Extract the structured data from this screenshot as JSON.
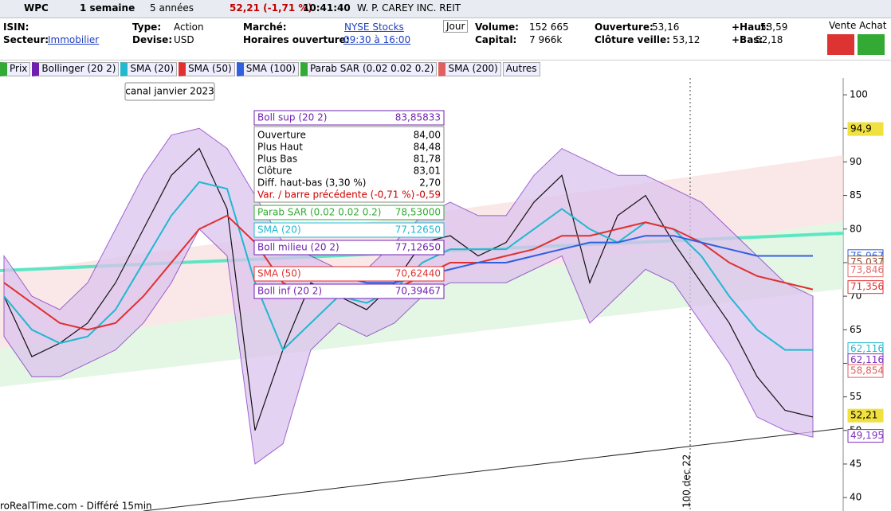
{
  "header": {
    "symbol": "WPC",
    "period": "1 semaine",
    "range": "5 années",
    "change": "52,21 (-1,71 %)",
    "time": "10:41:40",
    "name": "W. P. CAREY INC. REIT"
  },
  "info": [
    {
      "label": "ISIN:",
      "value": ""
    },
    {
      "label": "Secteur:",
      "value": "Immobilier"
    },
    {
      "label": "Type:",
      "value": "Action"
    },
    {
      "label": "Devise:",
      "value": "USD"
    },
    {
      "label": "Marché:",
      "value": "NYSE Stocks"
    },
    {
      "label": "Horaires ouverture:",
      "value": "09:30 à 16:00"
    },
    {
      "label": "Volume:",
      "value": "152 665"
    },
    {
      "label": "Capital:",
      "value": "7 966k"
    },
    {
      "label": "Ouverture:",
      "value": "53,16"
    },
    {
      "label": "Clôture veille:",
      "value": "53,12"
    },
    {
      "label": "+Haut:",
      "value": "53,59"
    },
    {
      "label": "+Bas:",
      "value": "52,18"
    }
  ],
  "jour": "Jour",
  "trade": "Vente Achat",
  "toolbar": [
    "Prix",
    "Bollinger (20 2)",
    "SMA (20)",
    "SMA (50)",
    "SMA (100)",
    "Parab SAR (0.02 0.02 0.2)",
    "SMA (200)",
    "Autres"
  ],
  "annotation": "canal janvier 2023",
  "date_marker": "100 dec 22",
  "footer": "roRealTime.com - Différé 15min",
  "tooltip": [
    {
      "label": "Boll sup (20 2)",
      "value": "83,85833"
    },
    {
      "label": "Ouverture",
      "value": "84,00"
    },
    {
      "label": "Plus Haut",
      "value": "84,48"
    },
    {
      "label": "Plus Bas",
      "value": "81,78"
    },
    {
      "label": "Clôture",
      "value": "83,01"
    },
    {
      "label": "Diff. haut-bas (3,30 %)",
      "value": "2,70"
    },
    {
      "label": "Var. / barre précédente (-0,71 %)",
      "value": "-0,59"
    },
    {
      "label": "Parab SAR (0.02 0.02 0.2)",
      "value": "78,53000"
    },
    {
      "label": "SMA (20)",
      "value": "77,12650"
    },
    {
      "label": "Boll milieu (20 2)",
      "value": "77,12650"
    },
    {
      "label": "SMA (50)",
      "value": "70,62440"
    },
    {
      "label": "Boll inf (20 2)",
      "value": "70,39467"
    }
  ],
  "chart_data": {
    "type": "line",
    "ylim": [
      38,
      102.5
    ],
    "yticks": [
      40,
      45,
      50,
      55,
      60,
      65,
      70,
      75,
      80,
      85,
      90,
      95,
      100
    ],
    "band": {
      "upper": [
        76,
        70,
        68,
        72,
        80,
        88,
        94,
        95,
        92,
        85,
        78,
        76,
        74,
        74,
        78,
        82,
        84,
        82,
        82,
        88,
        92,
        90,
        88,
        88,
        86,
        84,
        80,
        76,
        72,
        70
      ],
      "lower": [
        64,
        58,
        58,
        60,
        62,
        66,
        72,
        80,
        76,
        45,
        48,
        62,
        66,
        64,
        66,
        70,
        72,
        72,
        72,
        74,
        76,
        66,
        70,
        74,
        72,
        66,
        60,
        52,
        50,
        49
      ],
      "color": "#dcc3ee"
    },
    "series": [
      {
        "name": "Prix",
        "color": "#111111",
        "values": [
          70,
          61,
          63,
          66,
          72,
          80,
          88,
          92,
          83,
          50,
          62,
          72,
          70,
          68,
          72,
          78,
          79,
          76,
          78,
          84,
          88,
          72,
          82,
          85,
          78,
          72,
          66,
          58,
          53,
          52
        ]
      },
      {
        "name": "SMA (20)",
        "color": "#22b8d0",
        "values": [
          70,
          65,
          63,
          64,
          68,
          75,
          82,
          87,
          86,
          72,
          62,
          66,
          70,
          69,
          71,
          75,
          77,
          77,
          77,
          80,
          83,
          80,
          78,
          81,
          80,
          76,
          70,
          65,
          62,
          62
        ]
      },
      {
        "name": "SMA (50)",
        "color": "#e03030",
        "values": [
          72,
          69,
          66,
          65,
          66,
          70,
          75,
          80,
          82,
          78,
          72,
          70,
          70,
          70,
          71,
          73,
          75,
          75,
          76,
          77,
          79,
          79,
          80,
          81,
          80,
          78,
          75,
          73,
          72,
          71
        ]
      },
      {
        "name": "SMA (100)",
        "color": "#3060e0",
        "values": [
          null,
          null,
          null,
          null,
          null,
          null,
          null,
          null,
          null,
          null,
          null,
          74,
          73,
          72,
          72,
          73,
          74,
          75,
          75,
          76,
          77,
          78,
          78,
          79,
          79,
          78,
          77,
          76,
          76,
          76
        ]
      }
    ],
    "price_labels": [
      {
        "value": 94.9,
        "label": "94,9",
        "color": "#f0e040"
      },
      {
        "value": 75.967,
        "label": "75,967",
        "color": "#3060e0"
      },
      {
        "value": 75.037,
        "label": "75,037",
        "color": "#8a5030"
      },
      {
        "value": 73.846,
        "label": "73,846",
        "color": "#e07070"
      },
      {
        "value": 71.356,
        "label": "71,356",
        "color": "#e03030"
      },
      {
        "value": 62.116,
        "label": "62,116",
        "color": "#22b8d0"
      },
      {
        "value": 62.116,
        "label": "62,116",
        "color": "#8030c0"
      },
      {
        "value": 58.854,
        "label": "58,854",
        "color": "#e06060"
      },
      {
        "value": 52.21,
        "label": "52,21",
        "color": "#f0e040"
      },
      {
        "value": 49.195,
        "label": "49,195",
        "color": "#8030c0"
      }
    ]
  }
}
